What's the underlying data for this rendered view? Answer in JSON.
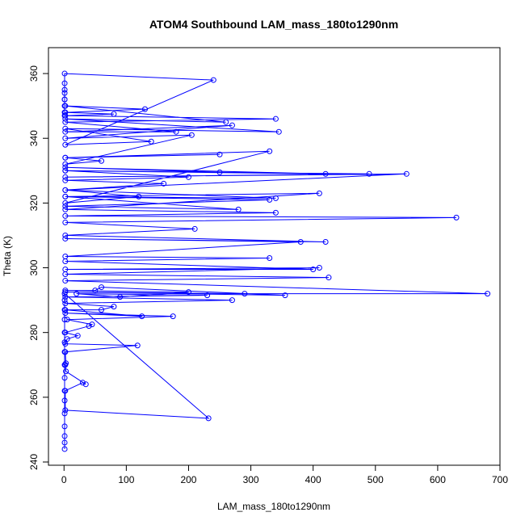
{
  "chart_data": {
    "type": "line",
    "title": "ATOM4 Southbound LAM_mass_180to1290nm",
    "xlabel": "LAM_mass_180to1290nm",
    "ylabel": "Theta (K)",
    "xlim": [
      -25,
      700
    ],
    "ylim": [
      239,
      368
    ],
    "xticks": [
      0,
      100,
      200,
      300,
      400,
      500,
      600,
      700
    ],
    "yticks": [
      240,
      260,
      280,
      300,
      320,
      340,
      360
    ],
    "series_color": "#0000ff",
    "marker": "open-circle",
    "series": [
      {
        "x": [
          1,
          1,
          1,
          1,
          1,
          1,
          1,
          1,
          1,
          1,
          1,
          1,
          1,
          1,
          1,
          1,
          232,
          2,
          2,
          30,
          35,
          3,
          2,
          3,
          2,
          118,
          2,
          5,
          22,
          2,
          40,
          45,
          5,
          175,
          2,
          125,
          2,
          60,
          80,
          2,
          270,
          2,
          230,
          20,
          90,
          200,
          2,
          50,
          60,
          355,
          2,
          290,
          680,
          2,
          425,
          2,
          410,
          2,
          400,
          2,
          330,
          2,
          380,
          2,
          420,
          2,
          210,
          2,
          630,
          2,
          340,
          2,
          410,
          2,
          280,
          2,
          330,
          2,
          340,
          2,
          550,
          2,
          490,
          2,
          420,
          2,
          250,
          2,
          200,
          2,
          160,
          2,
          120,
          2,
          330,
          2,
          250,
          2,
          60,
          2,
          205,
          2,
          270,
          2,
          180,
          2,
          340,
          2,
          80,
          2,
          130,
          2,
          260,
          2,
          345,
          2,
          140,
          2,
          240,
          1,
          1,
          1,
          1,
          1,
          1,
          1,
          1,
          1
        ],
        "y": [
          244,
          246,
          248,
          251,
          255,
          259,
          262,
          266,
          270,
          274,
          277,
          280,
          284,
          287,
          290,
          292,
          253.5,
          256,
          262,
          264.5,
          264,
          268,
          270,
          270.5,
          274,
          276,
          276.5,
          278,
          279,
          280,
          282,
          282.5,
          284,
          285,
          286,
          285,
          287,
          287,
          288,
          289,
          290,
          291,
          291.5,
          292,
          291,
          292.5,
          293,
          293,
          294,
          291.5,
          292.5,
          292,
          292,
          296,
          297,
          298,
          300,
          299.5,
          299.5,
          302,
          303,
          303.5,
          308,
          309,
          308,
          310,
          312,
          314,
          315.5,
          316,
          317,
          318,
          323,
          322,
          318,
          319,
          321,
          322,
          321.5,
          324,
          329,
          328,
          329,
          330,
          329,
          331,
          329.5,
          330,
          328,
          327,
          326,
          324,
          322,
          320,
          336,
          334,
          335,
          334,
          333,
          332,
          341,
          340,
          344,
          342,
          342,
          345,
          346,
          347,
          347.5,
          348,
          349,
          350,
          345,
          346,
          342,
          343,
          339,
          338,
          358,
          360,
          357,
          354,
          352,
          350,
          348,
          347,
          355,
          352
        ]
      }
    ]
  }
}
